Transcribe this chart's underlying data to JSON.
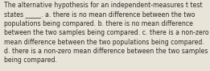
{
  "text": "The alternative hypothesis for an independent-measures t test\nstates _____. a. there is no mean difference between the two\npopulations being compared. b. there is no mean difference\nbetween the two samples being compared. c. there is a non-zero\nmean difference between the two populations being compared.\nd. there is a non-zero mean difference between the two samples\nbeing compared.",
  "background_color": "#e8e4d8",
  "text_color": "#2b2b2b",
  "font_size": 5.6,
  "figwidth": 2.61,
  "figheight": 0.88,
  "dpi": 100
}
